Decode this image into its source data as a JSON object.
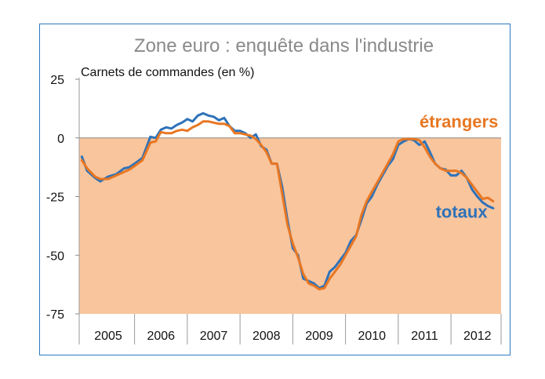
{
  "chart_data": {
    "type": "line",
    "title": "Zone euro : enquête dans l'industrie",
    "ylabel": "Carnets de commandes (en %)",
    "ylim": [
      -75,
      25
    ],
    "yticks": [
      25,
      0,
      -25,
      -50,
      -75
    ],
    "xlim": [
      2004.95,
      2012.95
    ],
    "categories": [
      "2005",
      "2006",
      "2007",
      "2008",
      "2009",
      "2010",
      "2011",
      "2012"
    ],
    "negative_area_color": "#f9c59d",
    "grid": false,
    "series": [
      {
        "name": "totaux",
        "color": "#2f72b8",
        "label_at": [
          2012.2,
          -34
        ],
        "points": [
          [
            2005.0,
            -8
          ],
          [
            2005.1,
            -14
          ],
          [
            2005.25,
            -17
          ],
          [
            2005.35,
            -18.5
          ],
          [
            2005.5,
            -16.5
          ],
          [
            2005.65,
            -15.5
          ],
          [
            2005.8,
            -13
          ],
          [
            2005.9,
            -12.5
          ],
          [
            2006.0,
            -11
          ],
          [
            2006.15,
            -8.5
          ],
          [
            2006.3,
            0.5
          ],
          [
            2006.4,
            0
          ],
          [
            2006.5,
            3.5
          ],
          [
            2006.6,
            4.5
          ],
          [
            2006.7,
            4
          ],
          [
            2006.8,
            5.5
          ],
          [
            2006.9,
            6.5
          ],
          [
            2007.0,
            8
          ],
          [
            2007.1,
            7
          ],
          [
            2007.2,
            9.5
          ],
          [
            2007.3,
            10.5
          ],
          [
            2007.4,
            9.5
          ],
          [
            2007.5,
            9
          ],
          [
            2007.6,
            7.5
          ],
          [
            2007.7,
            8.5
          ],
          [
            2007.8,
            5
          ],
          [
            2007.9,
            3
          ],
          [
            2008.0,
            3
          ],
          [
            2008.1,
            2
          ],
          [
            2008.2,
            0
          ],
          [
            2008.3,
            1.5
          ],
          [
            2008.4,
            -3.5
          ],
          [
            2008.5,
            -5
          ],
          [
            2008.6,
            -11
          ],
          [
            2008.7,
            -11
          ],
          [
            2008.8,
            -21
          ],
          [
            2008.9,
            -35
          ],
          [
            2009.0,
            -47
          ],
          [
            2009.1,
            -50
          ],
          [
            2009.2,
            -60
          ],
          [
            2009.3,
            -61
          ],
          [
            2009.4,
            -62
          ],
          [
            2009.5,
            -64
          ],
          [
            2009.6,
            -63
          ],
          [
            2009.7,
            -57
          ],
          [
            2009.8,
            -55
          ],
          [
            2009.9,
            -52
          ],
          [
            2010.0,
            -49
          ],
          [
            2010.1,
            -44
          ],
          [
            2010.2,
            -41.5
          ],
          [
            2010.3,
            -35
          ],
          [
            2010.4,
            -28
          ],
          [
            2010.5,
            -25
          ],
          [
            2010.6,
            -20
          ],
          [
            2010.7,
            -16
          ],
          [
            2010.8,
            -12
          ],
          [
            2010.9,
            -9
          ],
          [
            2011.0,
            -3
          ],
          [
            2011.1,
            -1.5
          ],
          [
            2011.2,
            -0.5
          ],
          [
            2011.3,
            -1
          ],
          [
            2011.4,
            -3
          ],
          [
            2011.5,
            -1.5
          ],
          [
            2011.6,
            -6
          ],
          [
            2011.7,
            -11
          ],
          [
            2011.8,
            -13
          ],
          [
            2011.9,
            -13.5
          ],
          [
            2012.0,
            -16
          ],
          [
            2012.1,
            -16
          ],
          [
            2012.2,
            -14
          ],
          [
            2012.3,
            -17
          ],
          [
            2012.4,
            -22
          ],
          [
            2012.5,
            -25
          ],
          [
            2012.6,
            -27.5
          ],
          [
            2012.7,
            -29
          ],
          [
            2012.8,
            -30
          ]
        ]
      },
      {
        "name": "étrangers",
        "color": "#e87722",
        "label_at": [
          2012.15,
          4.5
        ],
        "points": [
          [
            2005.0,
            -9.5
          ],
          [
            2005.1,
            -13
          ],
          [
            2005.25,
            -16.5
          ],
          [
            2005.35,
            -17.5
          ],
          [
            2005.5,
            -17.5
          ],
          [
            2005.65,
            -16
          ],
          [
            2005.8,
            -14.5
          ],
          [
            2005.9,
            -13.5
          ],
          [
            2006.0,
            -12
          ],
          [
            2006.15,
            -9.5
          ],
          [
            2006.3,
            -2
          ],
          [
            2006.4,
            -1.5
          ],
          [
            2006.5,
            2.5
          ],
          [
            2006.6,
            2
          ],
          [
            2006.7,
            2
          ],
          [
            2006.8,
            3
          ],
          [
            2006.9,
            3.5
          ],
          [
            2007.0,
            3
          ],
          [
            2007.1,
            4.5
          ],
          [
            2007.2,
            5.5
          ],
          [
            2007.3,
            7
          ],
          [
            2007.4,
            7
          ],
          [
            2007.5,
            6.5
          ],
          [
            2007.6,
            6
          ],
          [
            2007.7,
            6
          ],
          [
            2007.8,
            5
          ],
          [
            2007.9,
            2
          ],
          [
            2008.0,
            2
          ],
          [
            2008.1,
            1.5
          ],
          [
            2008.2,
            1
          ],
          [
            2008.3,
            -0.5
          ],
          [
            2008.4,
            -3
          ],
          [
            2008.5,
            -6
          ],
          [
            2008.6,
            -11
          ],
          [
            2008.7,
            -11
          ],
          [
            2008.8,
            -24
          ],
          [
            2008.9,
            -37
          ],
          [
            2009.0,
            -45
          ],
          [
            2009.1,
            -51
          ],
          [
            2009.2,
            -58
          ],
          [
            2009.3,
            -62
          ],
          [
            2009.4,
            -63
          ],
          [
            2009.5,
            -64.5
          ],
          [
            2009.6,
            -64
          ],
          [
            2009.7,
            -60
          ],
          [
            2009.8,
            -57
          ],
          [
            2009.9,
            -54
          ],
          [
            2010.0,
            -50
          ],
          [
            2010.1,
            -46
          ],
          [
            2010.2,
            -42
          ],
          [
            2010.3,
            -33
          ],
          [
            2010.4,
            -27
          ],
          [
            2010.5,
            -23
          ],
          [
            2010.6,
            -19
          ],
          [
            2010.7,
            -15
          ],
          [
            2010.8,
            -11
          ],
          [
            2010.9,
            -7
          ],
          [
            2011.0,
            -1.5
          ],
          [
            2011.1,
            -0.5
          ],
          [
            2011.2,
            -0.5
          ],
          [
            2011.3,
            -0.5
          ],
          [
            2011.4,
            -1
          ],
          [
            2011.5,
            -4
          ],
          [
            2011.6,
            -8
          ],
          [
            2011.7,
            -11
          ],
          [
            2011.8,
            -13
          ],
          [
            2011.9,
            -14
          ],
          [
            2012.0,
            -14
          ],
          [
            2012.1,
            -14
          ],
          [
            2012.2,
            -15
          ],
          [
            2012.3,
            -17
          ],
          [
            2012.4,
            -20
          ],
          [
            2012.5,
            -23
          ],
          [
            2012.6,
            -26
          ],
          [
            2012.7,
            -25.5
          ],
          [
            2012.8,
            -27
          ]
        ]
      }
    ]
  }
}
